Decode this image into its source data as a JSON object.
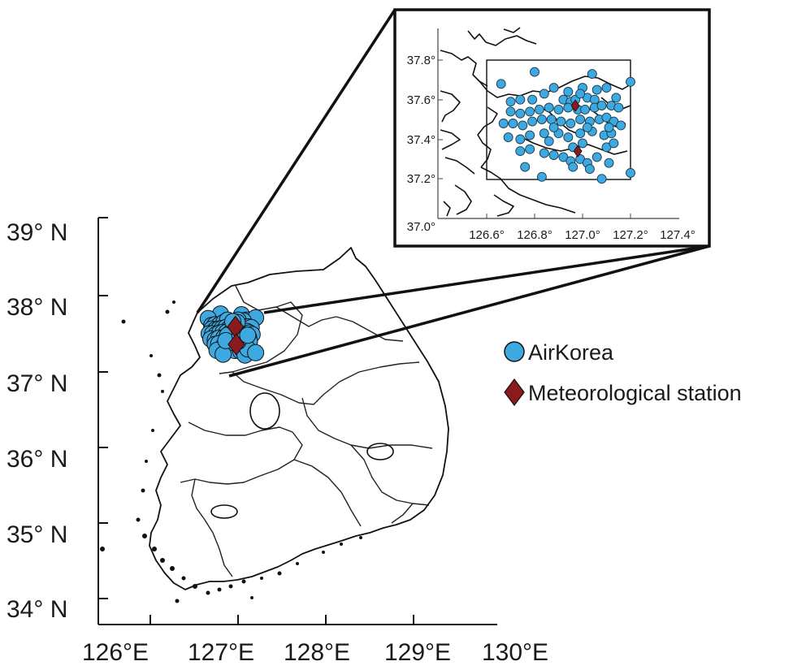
{
  "main_map": {
    "y_ticks": [
      "39° N",
      "38° N",
      "37° N",
      "36° N",
      "35° N",
      "34° N"
    ],
    "x_ticks": [
      "126°E",
      "127°E",
      "128°E",
      "129°E",
      "130°E"
    ]
  },
  "inset_map": {
    "y_ticks": [
      "37.8°",
      "37.6°",
      "37.4°",
      "37.2°",
      "37.0°"
    ],
    "x_ticks": [
      "126.6°",
      "126.8°",
      "127.0°",
      "127.2°",
      "127.4°"
    ]
  },
  "legend": {
    "items": [
      {
        "label": "AirKorea",
        "symbol": "circle",
        "color": "#3ea9e0"
      },
      {
        "label": "Meteorological station",
        "symbol": "diamond",
        "color": "#8b1a1f"
      }
    ]
  },
  "colors": {
    "airkorea_fill": "#3ea9e0",
    "station_fill": "#8b1a1f",
    "outline": "#111111"
  },
  "airkorea_stations": [
    [
      126.8,
      37.74
    ],
    [
      126.66,
      37.68
    ],
    [
      126.7,
      37.59
    ],
    [
      126.74,
      37.6
    ],
    [
      126.79,
      37.6
    ],
    [
      126.84,
      37.63
    ],
    [
      126.88,
      37.66
    ],
    [
      126.92,
      37.6
    ],
    [
      126.95,
      37.59
    ],
    [
      126.97,
      37.6
    ],
    [
      127.02,
      37.61
    ],
    [
      127.05,
      37.6
    ],
    [
      127.04,
      37.73
    ],
    [
      127.1,
      37.66
    ],
    [
      127.14,
      37.61
    ],
    [
      127.2,
      37.69
    ],
    [
      127.06,
      37.65
    ],
    [
      127.0,
      37.66
    ],
    [
      126.7,
      37.54
    ],
    [
      126.74,
      37.53
    ],
    [
      126.78,
      37.54
    ],
    [
      126.82,
      37.55
    ],
    [
      126.86,
      37.56
    ],
    [
      126.9,
      37.55
    ],
    [
      126.94,
      37.56
    ],
    [
      126.98,
      37.55
    ],
    [
      127.01,
      37.55
    ],
    [
      127.05,
      37.56
    ],
    [
      127.08,
      37.57
    ],
    [
      127.12,
      37.57
    ],
    [
      127.15,
      37.56
    ],
    [
      126.67,
      37.48
    ],
    [
      126.71,
      37.48
    ],
    [
      126.75,
      37.47
    ],
    [
      126.79,
      37.49
    ],
    [
      126.83,
      37.5
    ],
    [
      126.87,
      37.5
    ],
    [
      126.91,
      37.49
    ],
    [
      126.95,
      37.48
    ],
    [
      126.99,
      37.5
    ],
    [
      127.03,
      37.49
    ],
    [
      127.07,
      37.5
    ],
    [
      127.1,
      37.51
    ],
    [
      127.13,
      37.49
    ],
    [
      127.16,
      37.47
    ],
    [
      126.69,
      37.41
    ],
    [
      126.74,
      37.4
    ],
    [
      126.78,
      37.42
    ],
    [
      126.84,
      37.43
    ],
    [
      126.9,
      37.43
    ],
    [
      126.94,
      37.41
    ],
    [
      126.99,
      37.43
    ],
    [
      127.04,
      37.44
    ],
    [
      127.09,
      37.42
    ],
    [
      127.12,
      37.43
    ],
    [
      126.74,
      37.34
    ],
    [
      126.78,
      37.35
    ],
    [
      126.84,
      37.33
    ],
    [
      126.88,
      37.32
    ],
    [
      126.92,
      37.31
    ],
    [
      126.95,
      37.29
    ],
    [
      126.99,
      37.3
    ],
    [
      127.02,
      37.28
    ],
    [
      127.06,
      37.31
    ],
    [
      127.1,
      37.36
    ],
    [
      127.13,
      37.38
    ],
    [
      126.76,
      37.26
    ],
    [
      126.96,
      37.26
    ],
    [
      127.03,
      37.25
    ],
    [
      127.08,
      37.2
    ],
    [
      127.11,
      37.28
    ],
    [
      127.2,
      37.23
    ],
    [
      126.83,
      37.21
    ],
    [
      127.0,
      37.38
    ],
    [
      126.96,
      37.36
    ],
    [
      126.88,
      37.46
    ],
    [
      126.86,
      37.39
    ],
    [
      127.02,
      37.46
    ],
    [
      127.11,
      37.46
    ],
    [
      126.99,
      37.63
    ],
    [
      126.94,
      37.64
    ]
  ],
  "meteorological_stations": [
    [
      126.97,
      37.57
    ],
    [
      126.98,
      37.34
    ]
  ]
}
